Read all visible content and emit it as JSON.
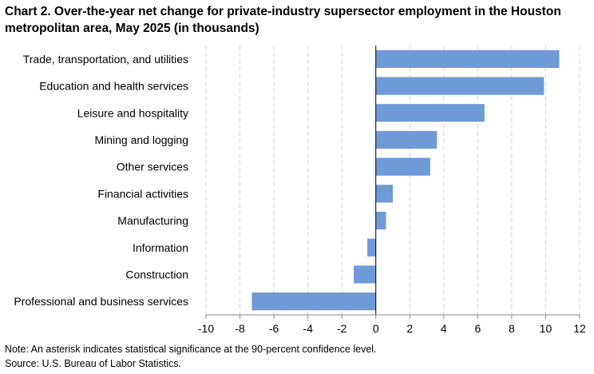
{
  "title_line1": "Chart 2. Over-the-year net change for private-industry supersector employment in the Houston",
  "title_line2": "metropolitan area, May 2025 (in thousands)",
  "note": "Note: An asterisk indicates statistical significance at the 90-percent confidence level.",
  "source": "Source: U.S. Bureau of Labor Statistics.",
  "chart_data": {
    "type": "bar",
    "orientation": "horizontal",
    "title": "Chart 2. Over-the-year net change for private-industry supersector employment in the Houston metropolitan area, May 2025 (in thousands)",
    "categories": [
      "Trade, transportation, and utilities",
      "Education and health services",
      "Leisure and hospitality",
      "Mining and logging",
      "Other services",
      "Financial activities",
      "Manufacturing",
      "Information",
      "Construction",
      "Professional and business services"
    ],
    "values": [
      10.8,
      9.9,
      6.4,
      3.6,
      3.2,
      1.0,
      0.6,
      -0.5,
      -1.3,
      -7.3
    ],
    "xlim": [
      -10,
      12
    ],
    "xticks": [
      -10,
      -8,
      -6,
      -4,
      -2,
      0,
      2,
      4,
      6,
      8,
      10,
      12
    ],
    "grid": true,
    "bar_color": "#6f9ad8"
  }
}
